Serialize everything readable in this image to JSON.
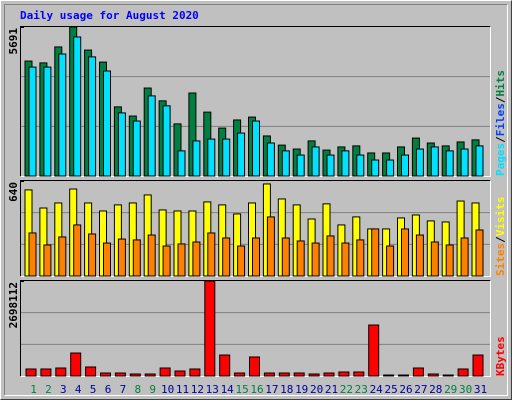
{
  "title": "Daily usage for August 2020",
  "chart_data": [
    {
      "type": "bar",
      "ylim": [
        0,
        5691
      ],
      "yticks": [
        5691
      ],
      "grid": true,
      "series": [
        {
          "name": "Hits",
          "color": "#008040",
          "values": [
            4390,
            4320,
            4930,
            5691,
            4810,
            4350,
            2640,
            2290,
            3360,
            2870,
            1990,
            3170,
            2440,
            1830,
            2140,
            2250,
            1530,
            1180,
            1030,
            1340,
            990,
            1110,
            1150,
            880,
            880,
            1110,
            1450,
            1260,
            1150,
            1300,
            1380
          ]
        },
        {
          "name": "Pages",
          "color": "#00E0FF",
          "values": [
            4160,
            4160,
            4660,
            5310,
            4550,
            4010,
            2410,
            2100,
            3060,
            2680,
            960,
            1340,
            1410,
            1410,
            1640,
            2100,
            1260,
            960,
            800,
            1110,
            800,
            960,
            800,
            610,
            610,
            800,
            1030,
            1110,
            960,
            1030,
            1150
          ]
        }
      ],
      "extra_legend": {
        "name": "Files",
        "color": "#0040FF"
      },
      "legend_separator": "/"
    },
    {
      "type": "bar",
      "ylim": [
        0,
        640
      ],
      "yticks": [
        640
      ],
      "grid": true,
      "series": [
        {
          "name": "Visits",
          "color": "#FFFF00",
          "values": [
            580,
            458,
            492,
            586,
            492,
            438,
            479,
            492,
            546,
            445,
            438,
            438,
            499,
            479,
            418,
            492,
            620,
            519,
            479,
            384,
            486,
            344,
            398,
            317,
            317,
            391,
            411,
            371,
            364,
            505,
            492
          ]
        },
        {
          "name": "Sites",
          "color": "#FF8000",
          "values": [
            290,
            209,
            263,
            344,
            283,
            222,
            249,
            243,
            276,
            202,
            216,
            229,
            290,
            256,
            202,
            256,
            398,
            256,
            236,
            222,
            270,
            222,
            243,
            317,
            202,
            317,
            276,
            229,
            209,
            256,
            310
          ]
        }
      ],
      "legend_separator": "/"
    },
    {
      "type": "bar",
      "ylim": [
        0,
        2698112
      ],
      "yticks": [
        2698112
      ],
      "grid": true,
      "series": [
        {
          "name": "KBytes",
          "color": "#FF0000",
          "values": [
            199000,
            199000,
            227000,
            653000,
            256000,
            85000,
            85000,
            57000,
            57000,
            227000,
            142000,
            199000,
            2698112,
            596000,
            85000,
            540000,
            85000,
            85000,
            85000,
            57000,
            85000,
            114000,
            114000,
            1448000,
            28000,
            28000,
            227000,
            57000,
            28000,
            199000,
            596000
          ]
        }
      ],
      "categories": [
        "1",
        "2",
        "3",
        "4",
        "5",
        "6",
        "7",
        "8",
        "9",
        "10",
        "11",
        "12",
        "13",
        "14",
        "15",
        "16",
        "17",
        "18",
        "19",
        "20",
        "21",
        "22",
        "23",
        "24",
        "25",
        "26",
        "27",
        "28",
        "29",
        "30",
        "31"
      ],
      "category_colors": [
        "#008040",
        "#00805C",
        "#0000A0",
        "#0000A0",
        "#0000A0",
        "#0000A0",
        "#0000A0",
        "#008040",
        "#008040",
        "#0000A0",
        "#0000A0",
        "#0000A0",
        "#0000A0",
        "#0000A0",
        "#008040",
        "#008040",
        "#0000A0",
        "#0000A0",
        "#0000A0",
        "#0000A0",
        "#0000A0",
        "#008040",
        "#008040",
        "#0000A0",
        "#0000A0",
        "#0000A0",
        "#0000A0",
        "#0000A0",
        "#008040",
        "#008040",
        "#0000A0"
      ]
    }
  ]
}
